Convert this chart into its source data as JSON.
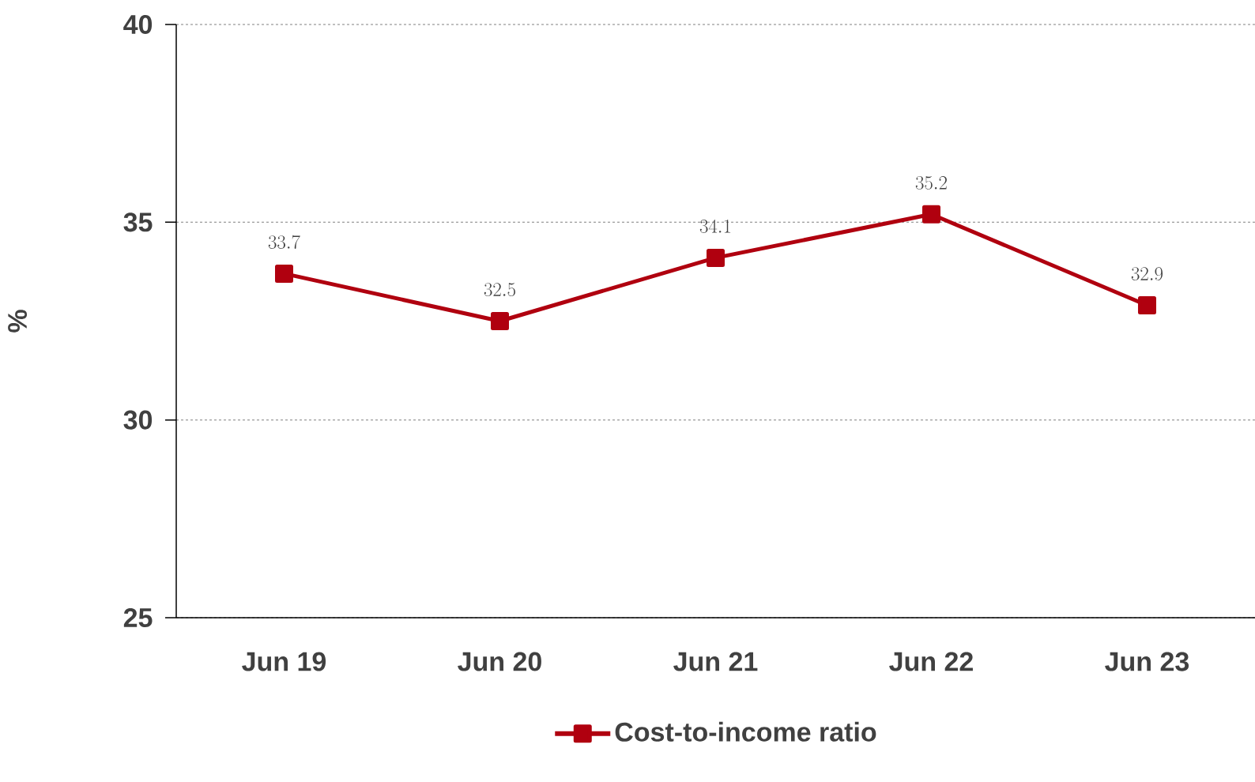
{
  "chart_data": {
    "type": "line",
    "ylabel": "%",
    "categories": [
      "Jun 19",
      "Jun 20",
      "Jun 21",
      "Jun 22",
      "Jun 23"
    ],
    "series": [
      {
        "name": "Cost-to-income ratio",
        "color": "#b0000f",
        "values": [
          33.7,
          32.5,
          34.1,
          35.2,
          32.9
        ]
      }
    ],
    "ylim": [
      25,
      40
    ],
    "yticks": [
      25,
      30,
      35,
      40
    ],
    "grid": "y",
    "data_labels": true,
    "legend": "bottom",
    "marker": "square",
    "line_style": "solid"
  }
}
